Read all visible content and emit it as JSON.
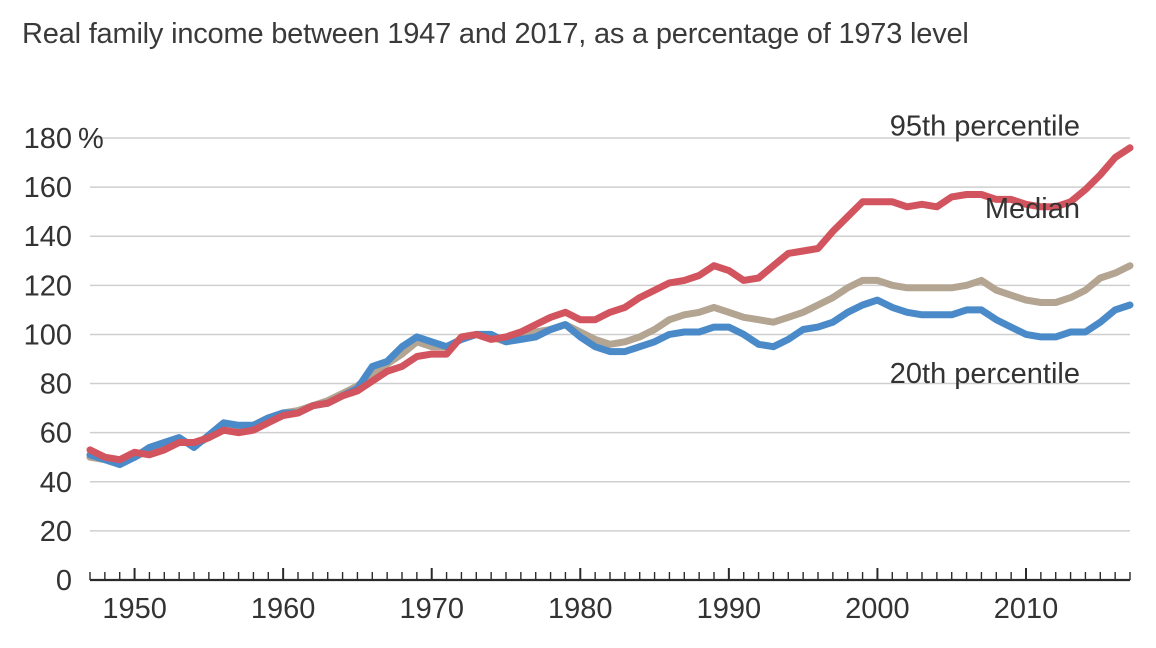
{
  "chart_data": {
    "type": "line",
    "title": "Real family income between 1947 and 2017, as a percentage of 1973 level",
    "xlabel": "",
    "ylabel": "",
    "xlim": [
      1947,
      2017
    ],
    "ylim": [
      0,
      180
    ],
    "y_unit_suffix": "%",
    "grid": true,
    "y_ticks": [
      0,
      20,
      40,
      60,
      80,
      100,
      120,
      140,
      160,
      180
    ],
    "y_tick_labels": [
      "0",
      "20",
      "40",
      "60",
      "80",
      "100",
      "120",
      "140",
      "160",
      "180"
    ],
    "x_ticks": [
      1950,
      1960,
      1970,
      1980,
      1990,
      2000,
      2010
    ],
    "x_tick_labels": [
      "1950",
      "1960",
      "1970",
      "1980",
      "1990",
      "2000",
      "2010"
    ],
    "x": [
      1947,
      1948,
      1949,
      1950,
      1951,
      1952,
      1953,
      1954,
      1955,
      1956,
      1957,
      1958,
      1959,
      1960,
      1961,
      1962,
      1963,
      1964,
      1965,
      1966,
      1967,
      1968,
      1969,
      1970,
      1971,
      1972,
      1973,
      1974,
      1975,
      1976,
      1977,
      1978,
      1979,
      1980,
      1981,
      1982,
      1983,
      1984,
      1985,
      1986,
      1987,
      1988,
      1989,
      1990,
      1991,
      1992,
      1993,
      1994,
      1995,
      1996,
      1997,
      1998,
      1999,
      2000,
      2001,
      2002,
      2003,
      2004,
      2005,
      2006,
      2007,
      2008,
      2009,
      2010,
      2011,
      2012,
      2013,
      2014,
      2015,
      2016,
      2017
    ],
    "series": [
      {
        "name": "95th percentile",
        "color": "#d2545e",
        "values": [
          53,
          50,
          49,
          52,
          51,
          53,
          56,
          56,
          58,
          61,
          60,
          61,
          64,
          67,
          68,
          71,
          72,
          75,
          77,
          81,
          85,
          87,
          91,
          92,
          92,
          99,
          100,
          98,
          99,
          101,
          104,
          107,
          109,
          106,
          106,
          109,
          111,
          115,
          118,
          121,
          122,
          124,
          128,
          126,
          122,
          123,
          128,
          133,
          134,
          135,
          142,
          148,
          154,
          154,
          154,
          152,
          153,
          152,
          156,
          157,
          157,
          155,
          155,
          153,
          152,
          152,
          154,
          159,
          165,
          172,
          176
        ]
      },
      {
        "name": "Median",
        "color": "#b3a592",
        "values": [
          50,
          49,
          48,
          50,
          53,
          55,
          57,
          55,
          58,
          62,
          62,
          63,
          66,
          68,
          69,
          71,
          73,
          76,
          79,
          84,
          88,
          92,
          97,
          95,
          95,
          98,
          100,
          99,
          97,
          99,
          101,
          102,
          104,
          101,
          98,
          96,
          97,
          99,
          102,
          106,
          108,
          109,
          111,
          109,
          107,
          106,
          105,
          107,
          109,
          112,
          115,
          119,
          122,
          122,
          120,
          119,
          119,
          119,
          119,
          120,
          122,
          118,
          116,
          114,
          113,
          113,
          115,
          118,
          123,
          125,
          128
        ]
      },
      {
        "name": "20th percentile",
        "color": "#4a8ac8",
        "values": [
          51,
          49,
          47,
          50,
          54,
          56,
          58,
          54,
          59,
          64,
          63,
          63,
          66,
          68,
          68,
          71,
          72,
          75,
          78,
          87,
          89,
          95,
          99,
          97,
          95,
          98,
          100,
          100,
          97,
          98,
          99,
          102,
          104,
          99,
          95,
          93,
          93,
          95,
          97,
          100,
          101,
          101,
          103,
          103,
          100,
          96,
          95,
          98,
          102,
          103,
          105,
          109,
          112,
          114,
          111,
          109,
          108,
          108,
          108,
          110,
          110,
          106,
          103,
          100,
          99,
          99,
          101,
          101,
          105,
          110,
          112
        ]
      }
    ],
    "annotations": [
      {
        "text": "95th percentile",
        "series": "95th percentile"
      },
      {
        "text": "Median",
        "series": "Median"
      },
      {
        "text": "20th percentile",
        "series": "20th percentile"
      }
    ]
  }
}
